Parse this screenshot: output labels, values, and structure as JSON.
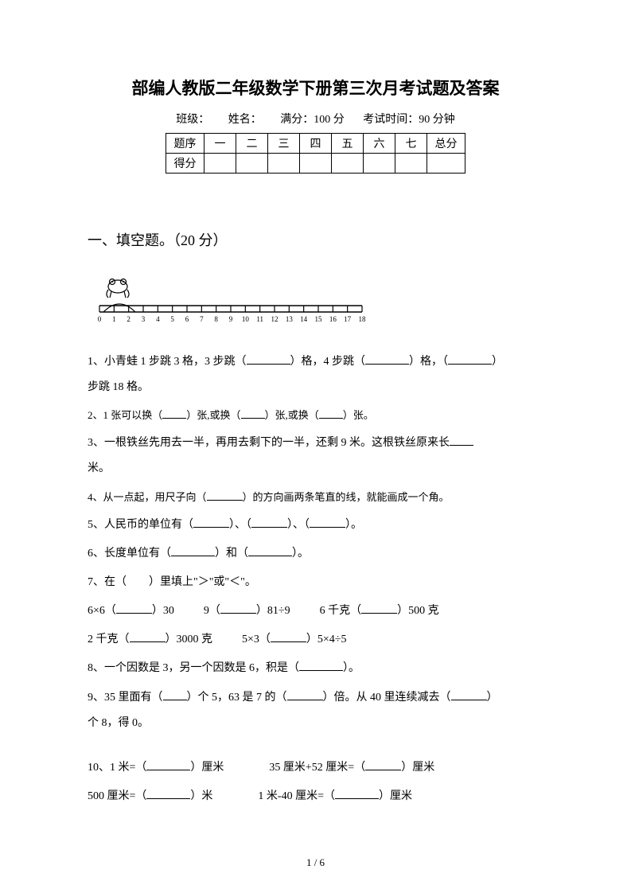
{
  "title": "部编人教版二年级数学下册第三次月考试题及答案",
  "info": {
    "class_label": "班级：",
    "name_label": "姓名：",
    "full_score": "满分：100 分",
    "exam_time": "考试时间：90 分钟"
  },
  "table": {
    "row1": [
      "题序",
      "一",
      "二",
      "三",
      "四",
      "五",
      "六",
      "七",
      "总分"
    ],
    "row2_label": "得分"
  },
  "section1_title": "一、填空题。（20 分）",
  "ruler": {
    "ticks": [
      "0",
      "1",
      "2",
      "3",
      "4",
      "5",
      "6",
      "7",
      "8",
      "9",
      "10",
      "11",
      "12",
      "13",
      "14",
      "15",
      "16",
      "17",
      "18"
    ]
  },
  "q1_a": "1、小青蛙 1 步跳 3 格，3 步跳（",
  "q1_b": "）格，4 步跳（",
  "q1_c": "）格，（",
  "q1_d": "）",
  "q1_e": "步跳 18 格。",
  "q2_a": "2、1 张可以换（",
  "q2_b": "）张,或换（",
  "q2_c": "）张,或换（",
  "q2_d": "）张。",
  "q3_a": "3、一根铁丝先用去一半，再用去剩下的一半，还剩 9 米。这根铁丝原来长",
  "q3_b": "米。",
  "q4_a": "4、从一点起，用尺子向（",
  "q4_b": "）的方向画两条笔直的线，就能画成一个角。",
  "q5_a": "5、人民币的单位有（",
  "q5_b": "）、（",
  "q5_c": "）、（",
  "q5_d": "）。",
  "q6_a": "6、长度单位有（",
  "q6_b": "）和（",
  "q6_c": "）。",
  "q7": "7、在（　　）里填上\"＞\"或\"＜\"。",
  "q7l1_a": "6×6（",
  "q7l1_b": "）30",
  "q7l1_c": "9（",
  "q7l1_d": "）81÷9",
  "q7l1_e": "6 千克（",
  "q7l1_f": "）500 克",
  "q7l2_a": "2 千克（",
  "q7l2_b": "）3000 克",
  "q7l2_c": "5×3（",
  "q7l2_d": "）5×4÷5",
  "q8_a": "8、一个因数是 3，另一个因数是 6，积是（",
  "q8_b": "）。",
  "q9_a": "9、35 里面有（",
  "q9_b": "）个 5，63 是 7 的（",
  "q9_c": "）倍。从 40 里连续减去（",
  "q9_d": "）",
  "q9_e": "个 8，得 0。",
  "q10_a": "10、1 米=（",
  "q10_b": "）厘米",
  "q10_c": "35 厘米+52 厘米=（",
  "q10_d": "）厘米",
  "q10_e": "500 厘米=（",
  "q10_f": "）米",
  "q10_g": "1 米-40 厘米=（",
  "q10_h": "）厘米",
  "page_num": "1 / 6"
}
